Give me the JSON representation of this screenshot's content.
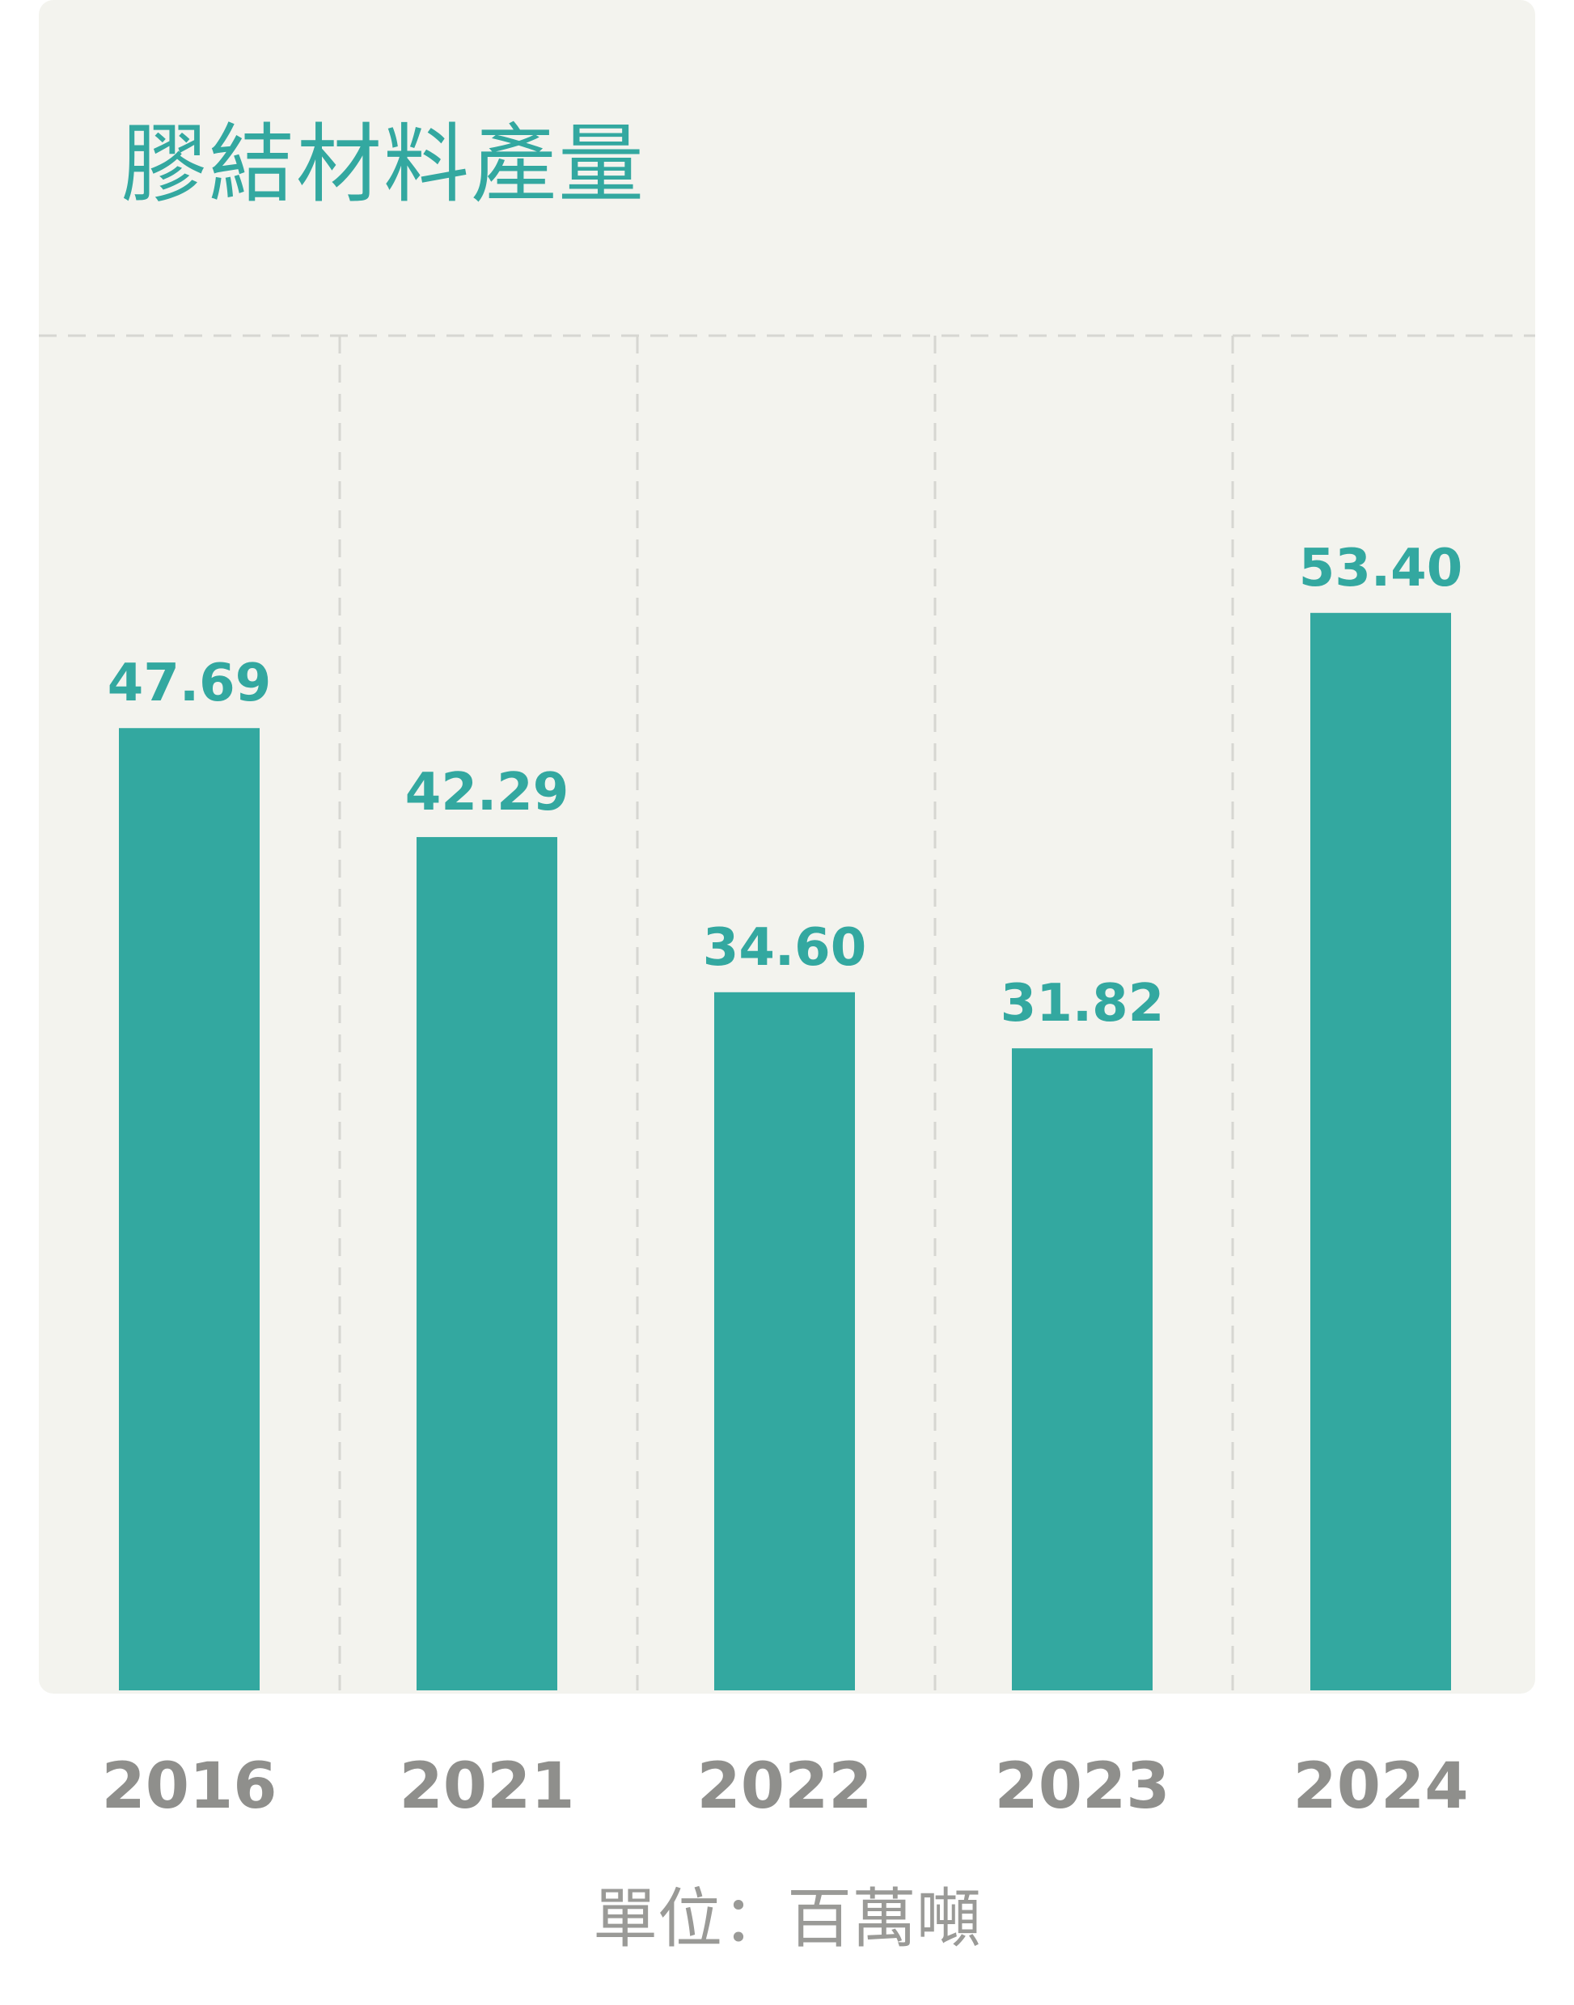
{
  "chart_data": {
    "type": "bar",
    "title": "膠結材料產量",
    "categories": [
      "2016",
      "2021",
      "2022",
      "2023",
      "2024"
    ],
    "values": [
      47.69,
      42.29,
      34.6,
      31.82,
      53.4
    ],
    "value_labels": [
      "47.69",
      "42.29",
      "34.60",
      "31.82",
      "53.40"
    ],
    "ylim": [
      0,
      67.1
    ],
    "grid": "dashed vertical separators between categories and a dashed top line",
    "legend": "none",
    "unit_note": "單位：百萬噸",
    "colors": {
      "bar": "#33a8a0",
      "value_label": "#33a8a0",
      "title": "#33a8a0",
      "category_label": "#8f8f8c",
      "unit_note": "#9a9a97",
      "panel_background": "#f3f3ee",
      "grid": "#d6d6d1"
    }
  }
}
